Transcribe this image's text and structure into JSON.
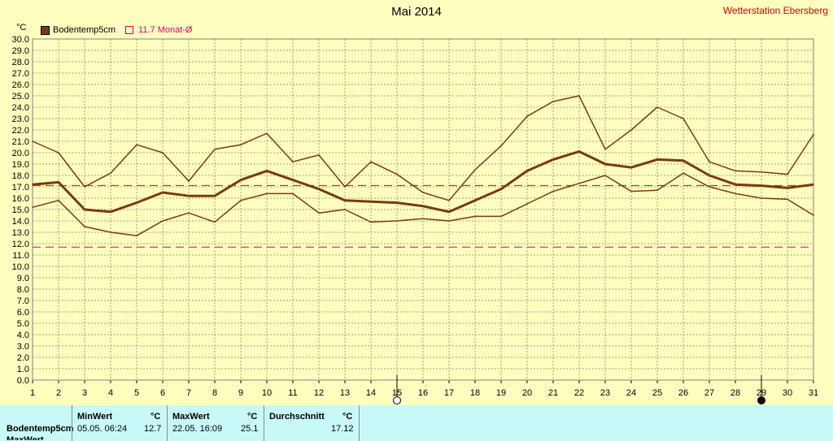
{
  "title": "Mai 2014",
  "station": "Wetterstation Ebersberg",
  "unit_label": "°C",
  "legend": {
    "series_name": "Bodentemp5cm",
    "avg_label": "11.7 Monat-Ø"
  },
  "colors": {
    "series": "#7a3a10",
    "avg_line": "#d4006a",
    "mean_line": "#7a3a10",
    "grid": "#a0a080",
    "background": "#ffffc0",
    "stats_bg": "#c8f8f8"
  },
  "chart_data": {
    "type": "line",
    "title": "Mai 2014",
    "xlabel": "",
    "ylabel": "°C",
    "x": [
      1,
      2,
      3,
      4,
      5,
      6,
      7,
      8,
      9,
      10,
      11,
      12,
      13,
      14,
      15,
      16,
      17,
      18,
      19,
      20,
      21,
      22,
      23,
      24,
      25,
      26,
      27,
      28,
      29,
      30,
      31
    ],
    "ylim": [
      0,
      30
    ],
    "ytick_step": 1.0,
    "grid": true,
    "series": [
      {
        "name": "Bodentemp5cm",
        "role": "max",
        "values": [
          21.0,
          20.0,
          17.0,
          18.2,
          20.7,
          20.0,
          17.5,
          20.3,
          20.7,
          21.7,
          19.2,
          19.8,
          17.0,
          19.2,
          18.1,
          16.5,
          15.8,
          18.5,
          20.6,
          23.2,
          24.5,
          25.0,
          20.3,
          22.0,
          24.0,
          23.0,
          19.2,
          18.4,
          18.3,
          18.1,
          21.6
        ]
      },
      {
        "name": "Bodentemp5cm",
        "role": "avg",
        "values": [
          17.2,
          17.4,
          15.0,
          14.8,
          15.6,
          16.5,
          16.2,
          16.2,
          17.6,
          18.4,
          17.6,
          16.8,
          15.8,
          15.7,
          15.6,
          15.3,
          14.8,
          15.8,
          16.8,
          18.4,
          19.4,
          20.1,
          19.0,
          18.7,
          19.4,
          19.3,
          18.0,
          17.2,
          17.1,
          16.9,
          17.2
        ]
      },
      {
        "name": "Bodentemp5cm",
        "role": "min",
        "values": [
          15.2,
          15.8,
          13.5,
          13.0,
          12.7,
          14.0,
          14.7,
          13.9,
          15.8,
          16.4,
          16.4,
          14.7,
          15.0,
          13.9,
          14.0,
          14.2,
          14.0,
          14.4,
          14.4,
          15.5,
          16.6,
          17.3,
          18.0,
          16.6,
          16.7,
          18.2,
          17.0,
          16.4,
          16.0,
          15.9,
          14.5
        ]
      }
    ],
    "reference_lines": [
      {
        "label": "11.7 Monat-Ø",
        "value": 11.7
      },
      {
        "label": "17.12",
        "value": 17.12
      }
    ],
    "markers": [
      {
        "x": 15,
        "kind": "full-moon"
      },
      {
        "x": 29,
        "kind": "new-moon"
      }
    ]
  },
  "stats": {
    "row_label": "Bodentemp5cm",
    "row_label2": "MaxWert",
    "min": {
      "header": "MinWert",
      "unit": "°C",
      "datetime": "05.05.  06:24",
      "value": "12.7"
    },
    "max": {
      "header": "MaxWert",
      "unit": "°C",
      "datetime": "22.05.  16:09",
      "value": "25.1"
    },
    "avg": {
      "header": "Durchschnitt",
      "unit": "°C",
      "value": "17.12"
    }
  }
}
